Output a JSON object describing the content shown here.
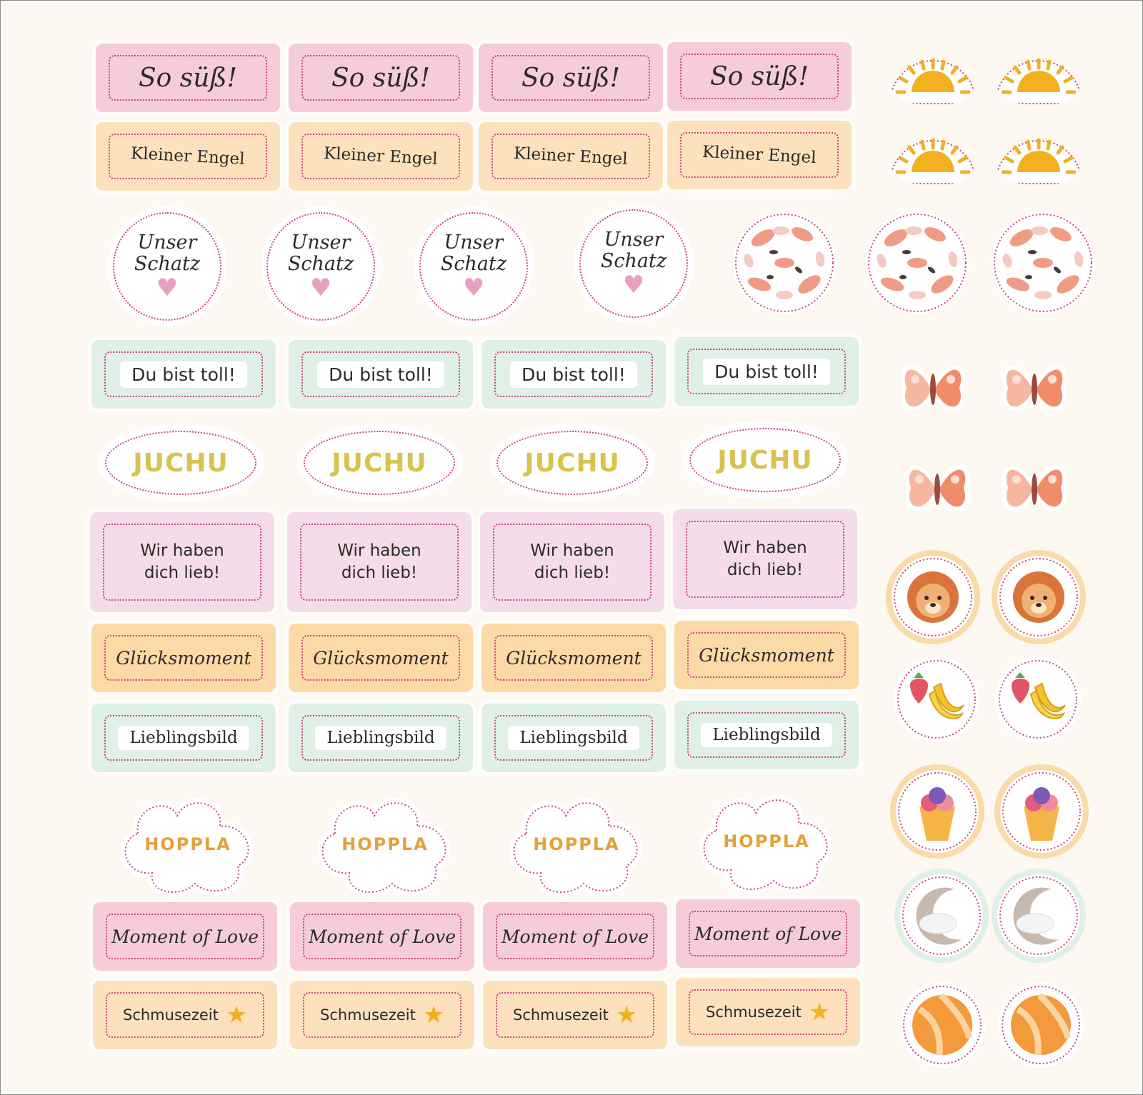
{
  "labels": {
    "so_suess": "So süß!",
    "kleiner_engel": "Kleiner Engel",
    "unser_schatz_line1": "Unser",
    "unser_schatz_line2": "Schatz",
    "du_bist_toll": "Du bist toll!",
    "juchu": "JUCHU",
    "wir_haben_line1": "Wir haben",
    "wir_haben_line2": "dich lieb!",
    "gluecksmoment": "Glücksmoment",
    "lieblingsbild": "Lieblingsbild",
    "hoppla": "HOPPLA",
    "moment_of_love": "Moment of Love",
    "schmusezeit": "Schmusezeit"
  },
  "icons": {
    "sun": "sun-icon",
    "floral": "floral-pattern-icon",
    "butterfly": "butterfly-icon",
    "lion": "lion-icon",
    "fruit": "strawberry-banana-icon",
    "icecream": "ice-cream-icon",
    "moon": "moon-cloud-icon",
    "ball": "ball-icon",
    "heart": "heart-icon",
    "star": "star-icon"
  },
  "colors": {
    "pink": "#f6ccd9",
    "peach": "#fde1bd",
    "mint": "#dff0e7",
    "lilac": "#f4dde8",
    "orange": "#fdd9a6",
    "dotted": "#c7447e",
    "sun": "#f2b11e"
  }
}
